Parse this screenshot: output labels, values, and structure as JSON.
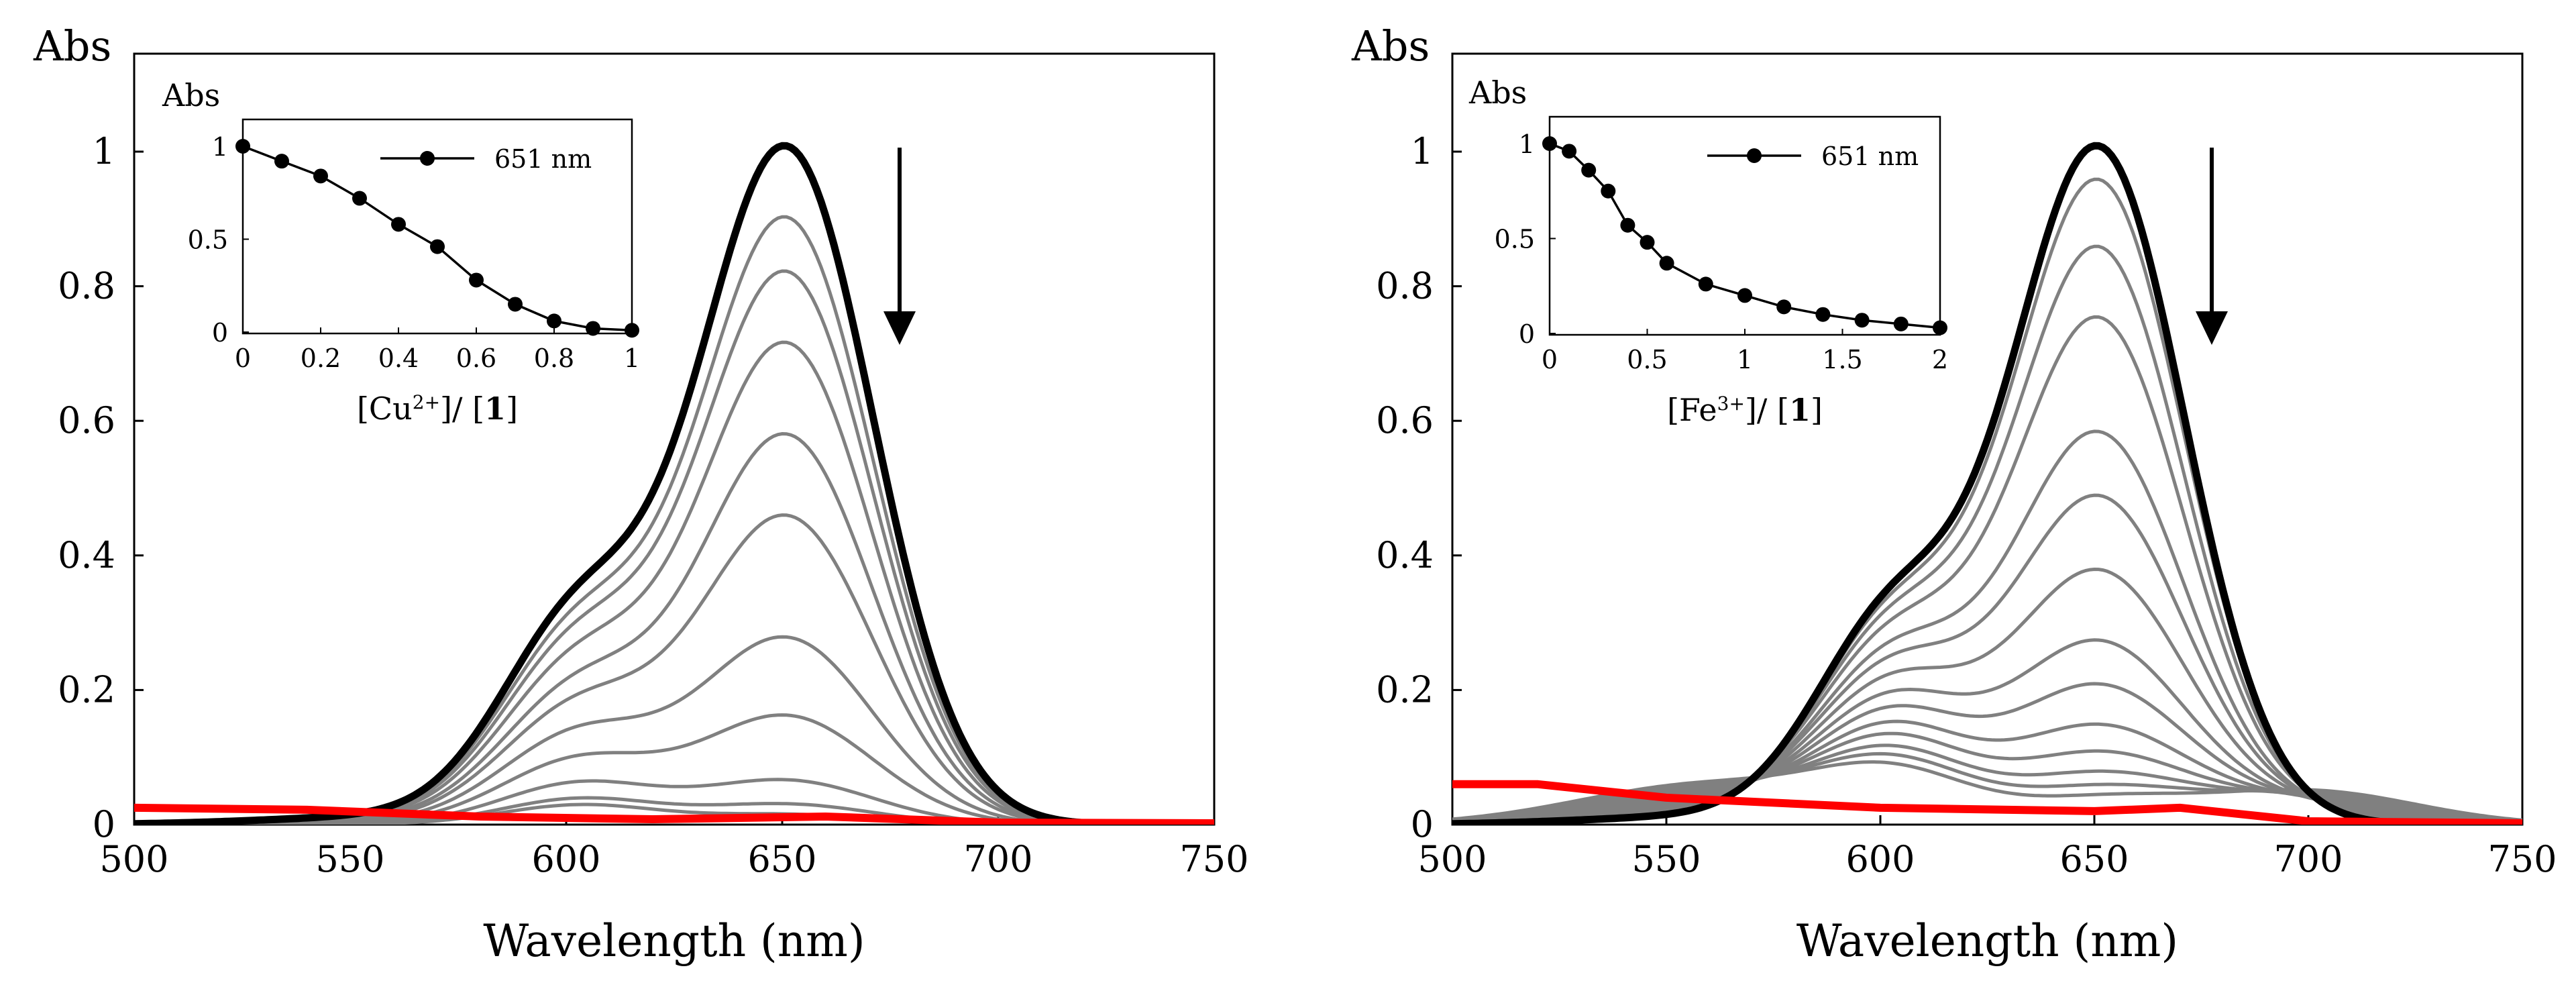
{
  "chart_data": [
    {
      "type": "line",
      "panel": "left",
      "xlabel": "Wavelength (nm)",
      "ylabel": "Abs",
      "xlim": [
        500,
        750
      ],
      "ylim": [
        0,
        1.0
      ],
      "xticks": [
        500,
        550,
        600,
        650,
        700,
        750
      ],
      "yticks": [
        0,
        0.2,
        0.4,
        0.6,
        0.8,
        1
      ],
      "grid": false,
      "annotation": "downward arrow (decreasing absorbance)",
      "spectra_peak_650": [
        1.0,
        0.895,
        0.815,
        0.71,
        0.575,
        0.455,
        0.275,
        0.16,
        0.065,
        0.03,
        0.015
      ],
      "spectra_shoulder_605": [
        0.37,
        0.34,
        0.315,
        0.28,
        0.235,
        0.2,
        0.15,
        0.105,
        0.065,
        0.04,
        0.03
      ],
      "series_colors": {
        "initial": "#000000",
        "intermediate": "#808080",
        "final": "#ff0000"
      },
      "final_spectrum": {
        "x": [
          500,
          540,
          580,
          620,
          660,
          700,
          750
        ],
        "y": [
          0.025,
          0.022,
          0.012,
          0.008,
          0.012,
          0.003,
          0.002
        ]
      },
      "inset": {
        "type": "line",
        "xlabel": "[Cu2+]/ [1]",
        "ylabel": "Abs",
        "legend": "651 nm",
        "xlim": [
          0,
          1
        ],
        "ylim": [
          0,
          1.1
        ],
        "xticks": [
          0,
          0.2,
          0.4,
          0.6,
          0.8,
          1
        ],
        "yticks": [
          0,
          0.5,
          1
        ],
        "x": [
          0,
          0.1,
          0.2,
          0.3,
          0.4,
          0.5,
          0.6,
          0.7,
          0.8,
          0.9,
          1.0
        ],
        "y": [
          1.0,
          0.92,
          0.84,
          0.72,
          0.58,
          0.46,
          0.28,
          0.15,
          0.06,
          0.02,
          0.01
        ]
      }
    },
    {
      "type": "line",
      "panel": "right",
      "xlabel": "Wavelength (nm)",
      "ylabel": "Abs",
      "xlim": [
        500,
        750
      ],
      "ylim": [
        0,
        1.0
      ],
      "xticks": [
        500,
        550,
        600,
        650,
        700,
        750
      ],
      "yticks": [
        0,
        0.2,
        0.4,
        0.6,
        0.8,
        1
      ],
      "grid": false,
      "annotation": "downward arrow (decreasing absorbance)",
      "spectra_peak_650": [
        1.0,
        0.95,
        0.85,
        0.745,
        0.575,
        0.48,
        0.37,
        0.265,
        0.2,
        0.14,
        0.1,
        0.07,
        0.05,
        0.035
      ],
      "spectra_shoulder_605": [
        0.37,
        0.355,
        0.335,
        0.31,
        0.275,
        0.25,
        0.22,
        0.19,
        0.165,
        0.14,
        0.12,
        0.1,
        0.085,
        0.07
      ],
      "series_colors": {
        "initial": "#000000",
        "intermediate": "#808080",
        "final": "#ff0000"
      },
      "final_spectrum": {
        "x": [
          500,
          520,
          550,
          600,
          650,
          670,
          700,
          750
        ],
        "y": [
          0.06,
          0.06,
          0.04,
          0.025,
          0.02,
          0.025,
          0.005,
          0.002
        ]
      },
      "inset": {
        "type": "line",
        "xlabel": "[Fe3+]/ [1]",
        "ylabel": "Abs",
        "legend": "651 nm",
        "xlim": [
          0,
          2
        ],
        "ylim": [
          0,
          1.1
        ],
        "xticks": [
          0,
          0.5,
          1,
          1.5,
          2
        ],
        "yticks": [
          0,
          0.5,
          1
        ],
        "x": [
          0,
          0.1,
          0.2,
          0.3,
          0.4,
          0.5,
          0.6,
          0.8,
          1.0,
          1.2,
          1.4,
          1.6,
          1.8,
          2.0
        ],
        "y": [
          1.0,
          0.96,
          0.86,
          0.75,
          0.57,
          0.48,
          0.37,
          0.26,
          0.2,
          0.14,
          0.1,
          0.07,
          0.05,
          0.03
        ]
      }
    }
  ]
}
